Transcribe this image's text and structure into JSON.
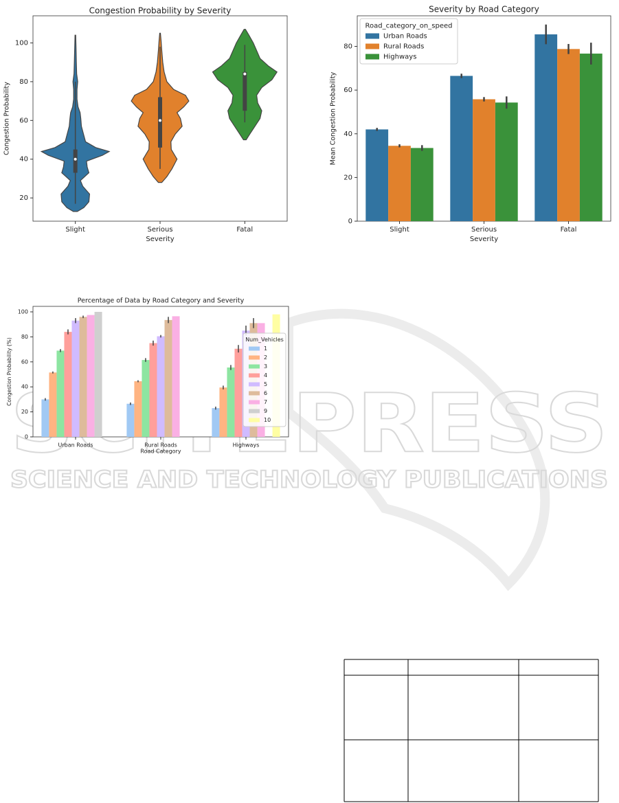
{
  "chart_data": [
    {
      "type": "violin",
      "title": "Congestion Probability by Severity",
      "x_label": "Severity",
      "y_label": "Congestion Probability",
      "categories": [
        "Slight",
        "Serious",
        "Fatal"
      ],
      "ylim": [
        8,
        114
      ],
      "yticks": [
        20,
        40,
        60,
        80,
        100
      ],
      "violins": [
        {
          "color": "#3274a1",
          "density_y": [
            13,
            15,
            18,
            22,
            26,
            29,
            33,
            36,
            39,
            42,
            44,
            46,
            49,
            53,
            57,
            61,
            64,
            67,
            71,
            76,
            80,
            84,
            90,
            97,
            104
          ],
          "density": [
            0.06,
            0.25,
            0.4,
            0.42,
            0.22,
            0.15,
            0.4,
            0.35,
            0.33,
            0.8,
            1.0,
            0.6,
            0.3,
            0.24,
            0.18,
            0.16,
            0.14,
            0.08,
            0.05,
            0.05,
            0.07,
            0.04,
            0.03,
            0.02,
            0.01
          ],
          "whisker_low": 17,
          "q1": 33,
          "median": 40,
          "q3": 45,
          "whisker_high": 80
        },
        {
          "color": "#e1812c",
          "density_y": [
            28,
            31,
            35,
            40,
            45,
            49,
            53,
            57,
            61,
            64,
            67,
            70,
            73,
            76,
            80,
            85,
            90,
            96,
            101,
            105
          ],
          "density": [
            0.05,
            0.2,
            0.35,
            0.5,
            0.33,
            0.32,
            0.45,
            0.65,
            0.6,
            0.5,
            0.7,
            0.85,
            0.75,
            0.4,
            0.2,
            0.12,
            0.08,
            0.05,
            0.03,
            0.01
          ],
          "whisker_low": 35,
          "q1": 46,
          "median": 60,
          "q3": 72,
          "whisker_high": 98
        },
        {
          "color": "#3a923a",
          "density_y": [
            50,
            53,
            57,
            61,
            65,
            69,
            73,
            77,
            81,
            85,
            88,
            92,
            96,
            100,
            104,
            107
          ],
          "density": [
            0.04,
            0.15,
            0.3,
            0.45,
            0.5,
            0.38,
            0.35,
            0.5,
            0.8,
            0.95,
            0.7,
            0.45,
            0.35,
            0.25,
            0.12,
            0.02
          ],
          "whisker_low": 59,
          "q1": 65,
          "median": 84,
          "q3": 85,
          "whisker_high": 99
        }
      ]
    },
    {
      "type": "bar",
      "title": "Severity by Road Category",
      "x_label": "Severity",
      "y_label": "Mean Congestion Probability",
      "categories": [
        "Slight",
        "Serious",
        "Fatal"
      ],
      "ylim": [
        0,
        94
      ],
      "yticks": [
        0,
        20,
        40,
        60,
        80
      ],
      "legend_title": "Road_category_on_speed",
      "legend": "upper left",
      "series": [
        {
          "name": "Urban Roads",
          "color": "#3274a1",
          "values": [
            42,
            66.5,
            85.5
          ],
          "errors": [
            0.7,
            1,
            4.5
          ]
        },
        {
          "name": "Rural Roads",
          "color": "#e1812c",
          "values": [
            34.5,
            55.8,
            78.8
          ],
          "errors": [
            0.7,
            1,
            2.3
          ]
        },
        {
          "name": "Highways",
          "color": "#3a923a",
          "values": [
            33.5,
            54.3,
            76.7
          ],
          "errors": [
            1.3,
            2.8,
            5
          ]
        }
      ]
    },
    {
      "type": "bar",
      "title": "Percentage of Data by Road Category and Severity",
      "x_label": "Road Category",
      "y_label": "Congestion Probability (%)",
      "categories": [
        "Urban Roads",
        "Rural Roads",
        "Highways"
      ],
      "ylim": [
        0,
        104.4
      ],
      "yticks": [
        0,
        20,
        40,
        60,
        80,
        100
      ],
      "legend_title": "Num_Vehicles",
      "legend": "center right",
      "series": [
        {
          "name": "1",
          "color": "#a1c9f4",
          "values": [
            30,
            26.5,
            23
          ],
          "errors": [
            1,
            1,
            1.2
          ]
        },
        {
          "name": "2",
          "color": "#ffb482",
          "values": [
            51.5,
            44.5,
            39.5
          ],
          "errors": [
            0.8,
            0.8,
            1.5
          ]
        },
        {
          "name": "3",
          "color": "#8de5a1",
          "values": [
            69,
            61.5,
            55.5
          ],
          "errors": [
            1.2,
            1.5,
            2
          ]
        },
        {
          "name": "4",
          "color": "#ff9f9b",
          "values": [
            84,
            75,
            70.5
          ],
          "errors": [
            2,
            2,
            3
          ]
        },
        {
          "name": "5",
          "color": "#d0bbff",
          "values": [
            93,
            80.5,
            85
          ],
          "errors": [
            2,
            1,
            4
          ]
        },
        {
          "name": "6",
          "color": "#debb9b",
          "values": [
            96,
            93.5,
            91
          ],
          "errors": [
            1,
            2.5,
            4
          ]
        },
        {
          "name": "7",
          "color": "#fab0e4",
          "values": [
            97.5,
            96.5,
            91
          ],
          "errors": [
            0,
            0,
            0
          ]
        },
        {
          "name": "9",
          "color": "#cfcfcf",
          "values": [
            100,
            null,
            null
          ],
          "errors": [
            0,
            null,
            null
          ]
        },
        {
          "name": "10",
          "color": "#fffea3",
          "values": [
            null,
            null,
            98
          ],
          "errors": [
            null,
            null,
            0
          ]
        }
      ]
    }
  ],
  "watermark": {
    "title": "SCITEPRESS",
    "subtitle": "SCIENCE AND TECHNOLOGY PUBLICATIONS"
  }
}
